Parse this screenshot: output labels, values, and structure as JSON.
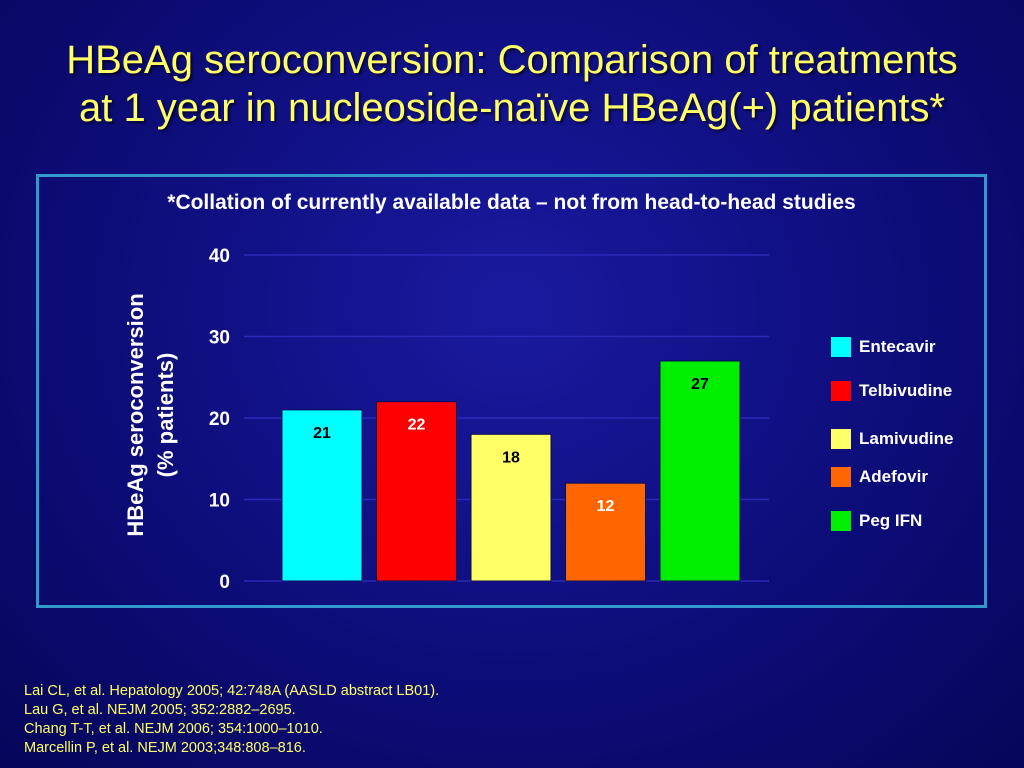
{
  "title": {
    "line1": "HBeAg seroconversion: Comparison of treatments",
    "line2": "at 1 year in nucleoside-naïve HBeAg(+) patients*"
  },
  "chart_data": {
    "type": "bar",
    "subtitle": "*Collation of currently available data – not from head-to-head studies",
    "ylabel_line1": "HBeAg seroconversion",
    "ylabel_line2": "(% patients)",
    "categories": [
      "Entecavir",
      "Telbivudine",
      "Lamivudine",
      "Adefovir",
      "Peg IFN"
    ],
    "values": [
      21,
      22,
      18,
      12,
      27
    ],
    "ylim": [
      0,
      40
    ],
    "yticks": [
      "0",
      "10",
      "20",
      "30",
      "40"
    ],
    "grid": true,
    "legend_position": "right",
    "colors": [
      "#00ffff",
      "#ff0000",
      "#ffff66",
      "#ff6600",
      "#00ee00"
    ],
    "label_colors": [
      "#000000",
      "#ffffff",
      "#000000",
      "#ffffff",
      "#000000"
    ]
  },
  "references": [
    "Lai CL, et al.  Hepatology 2005; 42:748A (AASLD abstract LB01).",
    "Lau G, et al. NEJM 2005; 352:2882–2695.",
    "Chang T-T, et al. NEJM 2006; 354:1000–1010.",
    "Marcellin P, et al. NEJM 2003;348:808–816."
  ]
}
